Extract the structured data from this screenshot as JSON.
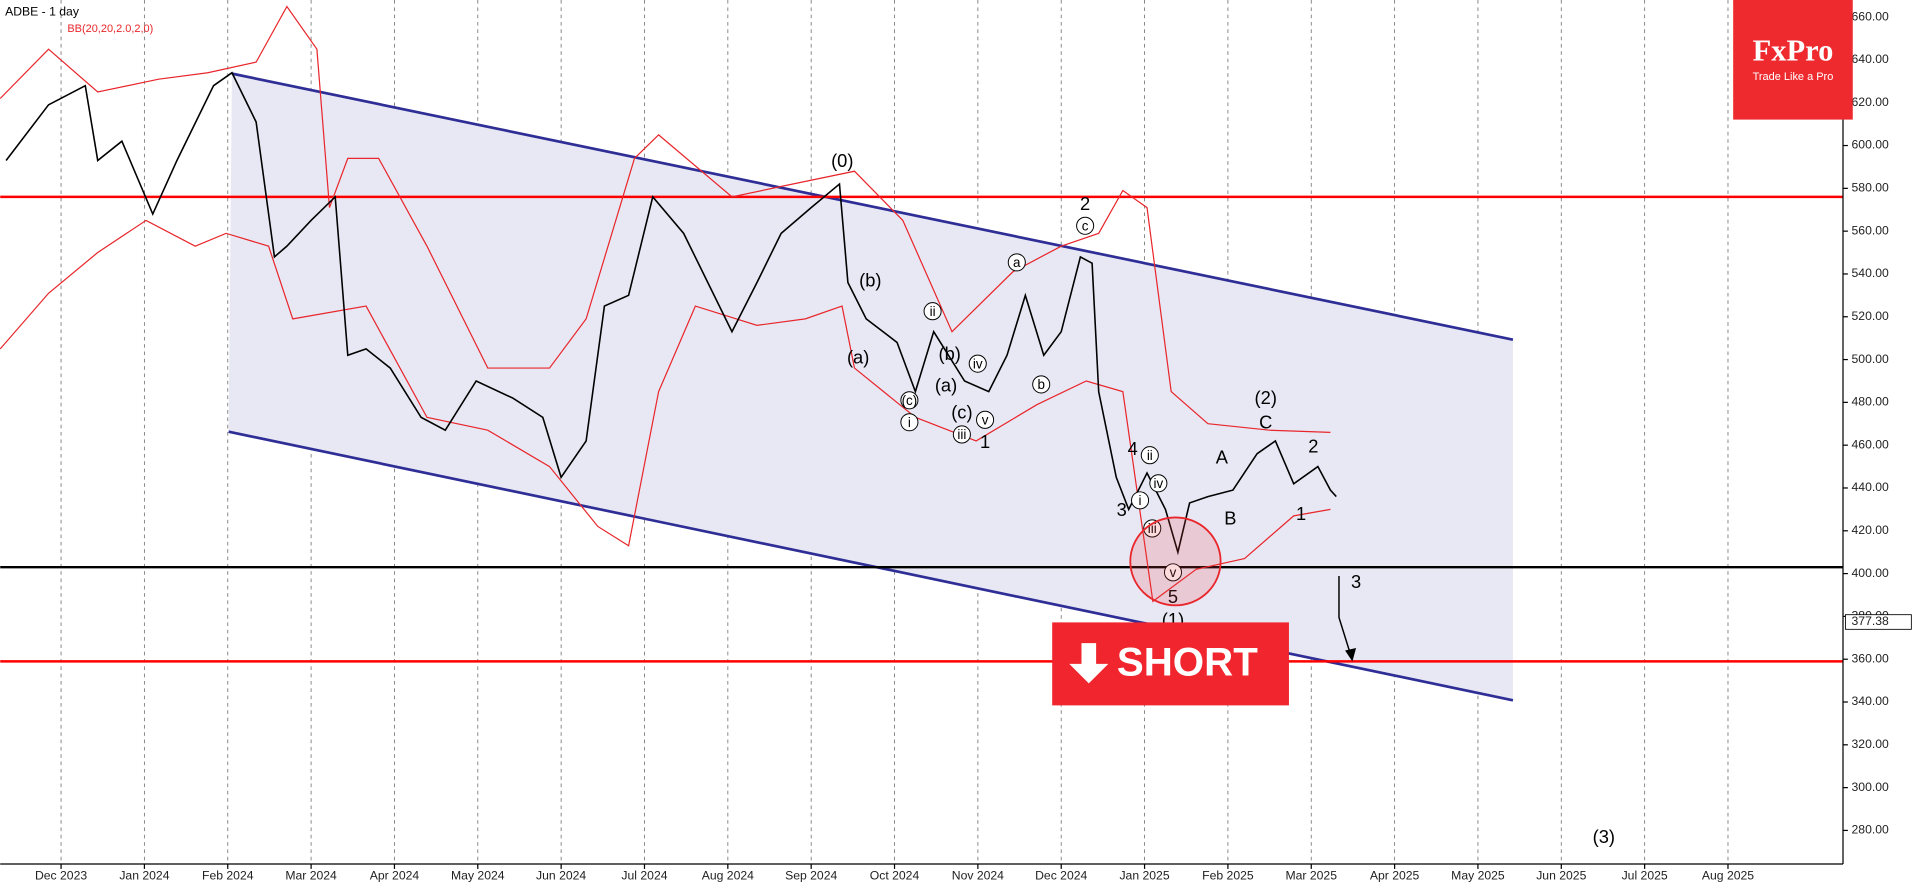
{
  "chart_data": {
    "type": "line",
    "title": "ADBE - 1 day",
    "indicator": "BB(20,20,2.0,2,0)",
    "color": "#000000",
    "x": [
      -0.66,
      -0.15,
      0.29,
      0.44,
      0.73,
      1.1,
      1.39,
      1.83,
      2.05,
      2.34,
      2.56,
      2.71,
      3.0,
      3.29,
      3.44,
      3.66,
      3.95,
      4.32,
      4.61,
      4.98,
      5.42,
      5.78,
      6.0,
      6.3,
      6.52,
      6.81,
      7.1,
      7.47,
      7.76,
      8.05,
      8.35,
      8.64,
      9.0,
      9.34,
      9.44,
      9.66,
      10.03,
      10.25,
      10.47,
      10.84,
      11.13,
      11.35,
      11.57,
      11.79,
      12.0,
      12.23,
      12.37,
      12.45,
      12.66,
      12.81,
      13.03,
      13.25,
      13.4,
      13.54,
      13.76,
      14.06,
      14.35,
      14.57,
      14.79,
      15.08,
      15.23,
      15.3
    ],
    "values": [
      593,
      619,
      628,
      593,
      602,
      568,
      593,
      628,
      634,
      611,
      548,
      553,
      565,
      576,
      502,
      505,
      496,
      473,
      467,
      490,
      482,
      473,
      445,
      462,
      525,
      530,
      576,
      559,
      536,
      513,
      536,
      559,
      571,
      582,
      536,
      519,
      508,
      485,
      513,
      490,
      485,
      502,
      530,
      502,
      513,
      548,
      545,
      485,
      445,
      430,
      447,
      430,
      410,
      433,
      436,
      439,
      456,
      462,
      442,
      450,
      439,
      436
    ],
    "bands": {
      "color": "#e8262b",
      "upper": {
        "x": [
          -0.73,
          -0.15,
          0.44,
          1.17,
          1.76,
          2.34,
          2.71,
          3.07,
          3.22,
          3.44,
          3.81,
          4.39,
          5.12,
          5.86,
          6.3,
          6.88,
          7.17,
          8.05,
          8.78,
          9.52,
          10.1,
          10.69,
          11.42,
          12.0,
          12.45,
          12.74,
          13.03,
          13.32,
          13.76,
          14.5,
          15.23
        ],
        "values": [
          622,
          645,
          625,
          631,
          634,
          639,
          665,
          645,
          571,
          594,
          594,
          553,
          496,
          496,
          519,
          594,
          605,
          576,
          582,
          588,
          565,
          513,
          541,
          553,
          559,
          579,
          571,
          485,
          470,
          467,
          466
        ]
      },
      "lower": {
        "x": [
          -0.73,
          -0.15,
          0.44,
          1.02,
          1.61,
          1.98,
          2.49,
          2.78,
          3.66,
          4.39,
          5.12,
          5.86,
          6.44,
          6.81,
          7.17,
          7.61,
          8.35,
          8.93,
          9.37,
          9.52,
          10.25,
          10.98,
          11.71,
          12.3,
          12.74,
          13.1,
          13.62,
          14.2,
          14.79,
          15.23
        ],
        "values": [
          505,
          531,
          550,
          565,
          553,
          559,
          553,
          519,
          525,
          473,
          467,
          450,
          422,
          413,
          485,
          525,
          516,
          519,
          525,
          496,
          473,
          462,
          479,
          490,
          485,
          387,
          402,
          407,
          427,
          430
        ]
      }
    },
    "channel": {
      "color": "#2e2e96",
      "fill": "#e8e8f4",
      "upper": {
        "x": [
          2.05,
          17.42
        ],
        "values": [
          633.6,
          509.3
        ]
      },
      "lower": {
        "x": [
          2.01,
          17.42
        ],
        "values": [
          466.3,
          340.8
        ]
      }
    },
    "hlines": [
      {
        "value": 576,
        "color": "#ff0000"
      },
      {
        "value": 403,
        "color": "#000000"
      },
      {
        "value": 359,
        "color": "#ff0000"
      }
    ],
    "last_price": {
      "value": 377.38,
      "label": "377.38"
    },
    "xlim": [
      -0.73,
      21.38
    ],
    "ylim": [
      270,
      668
    ],
    "grid": "x",
    "xticks": [
      {
        "value": 0,
        "label": "Dec 2023"
      },
      {
        "value": 1,
        "label": "Jan 2024"
      },
      {
        "value": 2,
        "label": "Feb 2024"
      },
      {
        "value": 3,
        "label": "Mar 2024"
      },
      {
        "value": 4,
        "label": "Apr 2024"
      },
      {
        "value": 5,
        "label": "May 2024"
      },
      {
        "value": 6,
        "label": "Jun 2024"
      },
      {
        "value": 7,
        "label": "Jul 2024"
      },
      {
        "value": 8,
        "label": "Aug 2024"
      },
      {
        "value": 9,
        "label": "Sep 2024"
      },
      {
        "value": 10,
        "label": "Oct 2024"
      },
      {
        "value": 11,
        "label": "Nov 2024"
      },
      {
        "value": 12,
        "label": "Dec 2024"
      },
      {
        "value": 13,
        "label": "Jan 2025"
      },
      {
        "value": 14,
        "label": "Feb 2025"
      },
      {
        "value": 15,
        "label": "Mar 2025"
      },
      {
        "value": 16,
        "label": "Apr 2025"
      },
      {
        "value": 17,
        "label": "May 2025"
      },
      {
        "value": 18,
        "label": "Jun 2025"
      },
      {
        "value": 19,
        "label": "Jul 2025"
      },
      {
        "value": 20,
        "label": "Aug 2025"
      }
    ],
    "yticks": [
      {
        "value": 280,
        "label": "280.00"
      },
      {
        "value": 300,
        "label": "300.00"
      },
      {
        "value": 320,
        "label": "320.00"
      },
      {
        "value": 340,
        "label": "340.00"
      },
      {
        "value": 360,
        "label": "360.00"
      },
      {
        "value": 380,
        "label": "380.00"
      },
      {
        "value": 400,
        "label": "400.00"
      },
      {
        "value": 420,
        "label": "420.00"
      },
      {
        "value": 440,
        "label": "440.00"
      },
      {
        "value": 460,
        "label": "460.00"
      },
      {
        "value": 480,
        "label": "480.00"
      },
      {
        "value": 500,
        "label": "500.00"
      },
      {
        "value": 520,
        "label": "520.00"
      },
      {
        "value": 540,
        "label": "540.00"
      },
      {
        "value": 560,
        "label": "560.00"
      },
      {
        "value": 580,
        "label": "580.00"
      },
      {
        "value": 600,
        "label": "600.00"
      },
      {
        "value": 620,
        "label": "620.00"
      },
      {
        "value": 640,
        "label": "640.00"
      },
      {
        "value": 660,
        "label": "660.00"
      }
    ],
    "annotations": [
      "(0)",
      "2",
      "(b)",
      "(a)",
      "(c)",
      "i",
      "ii",
      "(b)",
      "iv",
      "(a)",
      "(c)",
      "iii",
      "v",
      "1",
      "a",
      "b",
      "c",
      "4",
      "ii",
      "iv",
      "i",
      "3",
      "iii",
      "v",
      "5",
      "(1)",
      "A",
      "B",
      "C",
      "(2)",
      "2",
      "1",
      "3",
      "(3)"
    ],
    "badge": "SHORT",
    "logo": {
      "brand": "FxPro",
      "tagline": "Trade Like a Pro"
    }
  }
}
